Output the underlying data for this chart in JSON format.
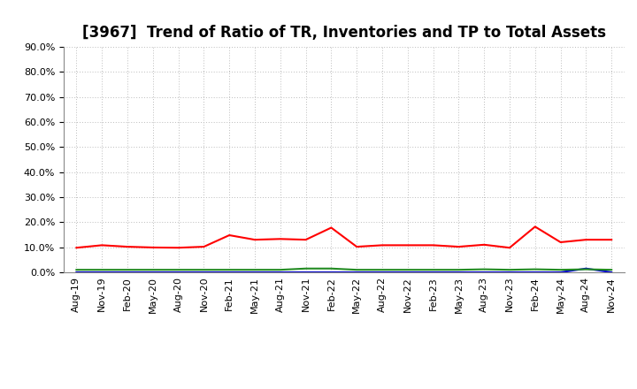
{
  "title": "[3967]  Trend of Ratio of TR, Inventories and TP to Total Assets",
  "xlabels": [
    "Aug-19",
    "Nov-19",
    "Feb-20",
    "May-20",
    "Aug-20",
    "Nov-20",
    "Feb-21",
    "May-21",
    "Aug-21",
    "Nov-21",
    "Feb-22",
    "May-22",
    "Aug-22",
    "Nov-22",
    "Feb-23",
    "May-23",
    "Aug-23",
    "Nov-23",
    "Feb-24",
    "May-24",
    "Aug-24",
    "Nov-24"
  ],
  "trade_receivables": [
    0.098,
    0.108,
    0.102,
    0.099,
    0.098,
    0.102,
    0.148,
    0.13,
    0.133,
    0.13,
    0.178,
    0.102,
    0.108,
    0.108,
    0.108,
    0.102,
    0.11,
    0.098,
    0.182,
    0.12,
    0.13,
    0.13
  ],
  "inventories": [
    0.0,
    0.0,
    0.0,
    0.0,
    0.0,
    0.0,
    0.0,
    0.0,
    0.0,
    0.0,
    0.0,
    0.0,
    0.0,
    0.0,
    0.0,
    0.0,
    0.0,
    0.0,
    0.0,
    0.0,
    0.015,
    0.0
  ],
  "trade_payables": [
    0.01,
    0.01,
    0.01,
    0.01,
    0.01,
    0.01,
    0.01,
    0.01,
    0.01,
    0.015,
    0.015,
    0.01,
    0.01,
    0.01,
    0.01,
    0.01,
    0.012,
    0.01,
    0.012,
    0.01,
    0.012,
    0.01
  ],
  "tr_color": "#FF0000",
  "inv_color": "#0000CD",
  "tp_color": "#228B22",
  "ylim": [
    0.0,
    0.9
  ],
  "yticks": [
    0.0,
    0.1,
    0.2,
    0.3,
    0.4,
    0.5,
    0.6,
    0.7,
    0.8,
    0.9
  ],
  "background_color": "#FFFFFF",
  "grid_color": "#BBBBBB",
  "title_fontsize": 12,
  "legend_fontsize": 9.5,
  "tick_fontsize": 8
}
